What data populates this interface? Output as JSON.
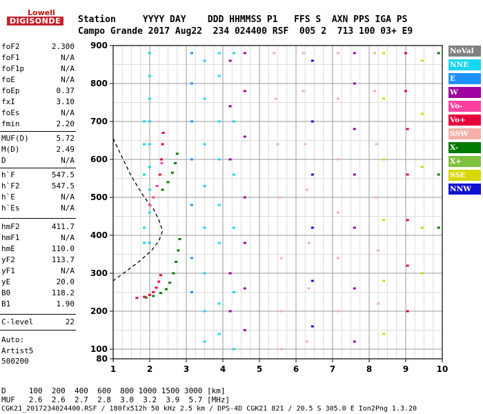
{
  "logo": {
    "brand": "Lowell",
    "name": "DIGISONDE"
  },
  "header": {
    "row1": "Station     YYYY DAY    DDD HHMMSS P1   FFS S  AXN PPS IGA PS",
    "row2": "Campo Grande 2017 Aug22  234 024400 RSF  005 2  713 100 03+ E9"
  },
  "params": [
    {
      "label": "foF2",
      "value": "2.300"
    },
    {
      "label": "foF1",
      "value": "N/A"
    },
    {
      "label": "foF1p",
      "value": "N/A"
    },
    {
      "label": "foE",
      "value": "N/A"
    },
    {
      "label": "foEp",
      "value": "0.37"
    },
    {
      "label": "fxI",
      "value": "3.10"
    },
    {
      "label": "foEs",
      "value": "N/A"
    },
    {
      "label": "fmin",
      "value": "2.20"
    },
    {
      "label": "MUF(D)",
      "value": "5.72"
    },
    {
      "label": "M(D)",
      "value": "2.49"
    },
    {
      "label": "D",
      "value": "N/A"
    },
    {
      "label": "h`F",
      "value": "547.5"
    },
    {
      "label": "h`F2",
      "value": "547.5"
    },
    {
      "label": "h`E",
      "value": "N/A"
    },
    {
      "label": "h`Es",
      "value": "N/A"
    },
    {
      "label": "hmF2",
      "value": "411.7"
    },
    {
      "label": "hmF1",
      "value": "N/A"
    },
    {
      "label": "hmE",
      "value": "110.0"
    },
    {
      "label": "yF2",
      "value": "113.7"
    },
    {
      "label": "yF1",
      "value": "N/A"
    },
    {
      "label": "yE",
      "value": "20.0"
    },
    {
      "label": "B0",
      "value": "118.2"
    },
    {
      "label": "B1",
      "value": "1.90"
    },
    {
      "label": "C-level",
      "value": "22"
    }
  ],
  "auto": {
    "line1": "Auto:",
    "line2": "Artist5",
    "line3": "500200"
  },
  "legend": [
    {
      "label": "NoVal",
      "color": "#808080"
    },
    {
      "label": "NNE",
      "color": "#17d7f0"
    },
    {
      "label": "E",
      "color": "#1e90ff"
    },
    {
      "label": "W",
      "color": "#a0009f"
    },
    {
      "label": "Vo-",
      "color": "#ff40a0"
    },
    {
      "label": "Vo+",
      "color": "#e8003a"
    },
    {
      "label": "SSW",
      "color": "#f4b0a8"
    },
    {
      "label": "X-",
      "color": "#007a00"
    },
    {
      "label": "X+",
      "color": "#80c040"
    },
    {
      "label": "SSE",
      "color": "#d8d800"
    },
    {
      "label": "NNW",
      "color": "#1010d0"
    }
  ],
  "footer": {
    "d_row": "D     100  200  400  600  800 1000 1500 3000 [km]",
    "muf_row": "MUF   2.6  2.6  2.7  2.8  3.0  3.2  3.9  5.7 [MHz]",
    "file_row": "CGK21_2017234024400.RSF / 180fx512h 50 kHz 2.5 km / DPS-4D CGK21 821 / 20.5 S 305.0 E Ion2Png 1.3.20"
  },
  "chart_data": {
    "type": "scatter",
    "xlim": [
      1,
      10
    ],
    "ylim": [
      80,
      900
    ],
    "x_ticks": [
      "1",
      "2",
      "3",
      "4",
      "5",
      "6",
      "7",
      "8",
      "9",
      "10"
    ],
    "y_ticks": [
      "80",
      "100",
      "200",
      "300",
      "400",
      "500",
      "600",
      "700",
      "800",
      "900"
    ],
    "grid": true,
    "profile_dashed": [
      [
        1.0,
        655
      ],
      [
        1.5,
        555
      ],
      [
        1.85,
        500
      ],
      [
        2.1,
        470
      ],
      [
        2.25,
        440
      ],
      [
        2.35,
        412
      ],
      [
        2.25,
        385
      ],
      [
        2.05,
        360
      ],
      [
        1.7,
        330
      ],
      [
        1.35,
        305
      ],
      [
        1.0,
        280
      ]
    ],
    "traces": [
      {
        "mode": "X-",
        "points": [
          [
            1.9,
            236
          ],
          [
            2.1,
            240
          ],
          [
            2.3,
            248
          ],
          [
            2.45,
            258
          ],
          [
            2.55,
            275
          ],
          [
            2.65,
            300
          ],
          [
            2.72,
            330
          ],
          [
            2.78,
            360
          ],
          [
            2.82,
            390
          ]
        ]
      },
      {
        "mode": "Vo+",
        "points": [
          [
            1.65,
            235
          ],
          [
            1.85,
            238
          ],
          [
            2.0,
            243
          ],
          [
            2.1,
            250
          ],
          [
            2.18,
            262
          ],
          [
            2.25,
            278
          ],
          [
            2.3,
            295
          ]
        ]
      },
      {
        "mode": "Vo-",
        "points": [
          [
            2.0,
            480
          ],
          [
            2.1,
            500
          ],
          [
            2.2,
            530
          ],
          [
            2.28,
            560
          ],
          [
            2.33,
            590
          ]
        ]
      },
      {
        "mode": "Vo+",
        "points": [
          [
            2.28,
            560
          ],
          [
            2.32,
            600
          ],
          [
            2.35,
            640
          ],
          [
            2.37,
            670
          ]
        ]
      },
      {
        "mode": "X-",
        "points": [
          [
            2.35,
            520
          ],
          [
            2.5,
            540
          ],
          [
            2.62,
            565
          ],
          [
            2.7,
            590
          ],
          [
            2.75,
            615
          ]
        ]
      },
      {
        "mode": "NNE",
        "points": [
          [
            2.0,
            880
          ],
          [
            2.0,
            820
          ],
          [
            2.0,
            760
          ],
          [
            2.0,
            700
          ],
          [
            2.0,
            640
          ],
          [
            2.0,
            580
          ],
          [
            2.0,
            520
          ],
          [
            2.0,
            460
          ],
          [
            2.0,
            380
          ]
        ]
      },
      {
        "mode": "NNE",
        "points": [
          [
            1.85,
            700
          ],
          [
            1.85,
            640
          ],
          [
            1.85,
            560
          ],
          [
            1.85,
            420
          ],
          [
            1.85,
            380
          ]
        ]
      },
      {
        "mode": "E",
        "points": [
          [
            3.15,
            880
          ],
          [
            3.15,
            800
          ],
          [
            3.15,
            700
          ],
          [
            3.15,
            600
          ],
          [
            3.15,
            480
          ],
          [
            3.15,
            340
          ],
          [
            3.15,
            250
          ]
        ]
      },
      {
        "mode": "NNE",
        "points": [
          [
            3.5,
            860
          ],
          [
            3.5,
            760
          ],
          [
            3.5,
            640
          ],
          [
            3.5,
            530
          ],
          [
            3.5,
            420
          ],
          [
            3.5,
            300
          ],
          [
            3.5,
            200
          ],
          [
            3.5,
            120
          ]
        ]
      },
      {
        "mode": "NNE",
        "points": [
          [
            3.9,
            880
          ],
          [
            3.9,
            820
          ],
          [
            3.9,
            700
          ],
          [
            3.9,
            600
          ],
          [
            3.9,
            480
          ],
          [
            3.9,
            380
          ],
          [
            3.9,
            220
          ],
          [
            3.9,
            140
          ]
        ]
      },
      {
        "mode": "NNE",
        "points": [
          [
            4.3,
            880
          ],
          [
            4.3,
            700
          ],
          [
            4.3,
            560
          ],
          [
            4.3,
            420
          ],
          [
            4.3,
            250
          ],
          [
            4.3,
            100
          ]
        ]
      },
      {
        "mode": "W",
        "points": [
          [
            4.2,
            860
          ],
          [
            4.2,
            740
          ],
          [
            4.2,
            600
          ],
          [
            4.2,
            300
          ],
          [
            4.2,
            200
          ]
        ]
      },
      {
        "mode": "W",
        "points": [
          [
            4.6,
            880
          ],
          [
            4.6,
            780
          ],
          [
            4.6,
            660
          ],
          [
            4.6,
            500
          ],
          [
            4.6,
            380
          ],
          [
            4.6,
            260
          ],
          [
            4.6,
            150
          ]
        ]
      },
      {
        "mode": "SSW",
        "points": [
          [
            5.4,
            880
          ],
          [
            5.45,
            760
          ],
          [
            5.5,
            640
          ],
          [
            5.55,
            500
          ],
          [
            5.6,
            340
          ],
          [
            5.6,
            200
          ],
          [
            5.6,
            100
          ]
        ]
      },
      {
        "mode": "SSW",
        "points": [
          [
            6.2,
            880
          ],
          [
            6.2,
            780
          ],
          [
            6.25,
            640
          ],
          [
            6.3,
            520
          ],
          [
            6.35,
            380
          ],
          [
            6.35,
            260
          ],
          [
            6.3,
            120
          ]
        ]
      },
      {
        "mode": "NNW",
        "points": [
          [
            6.45,
            860
          ],
          [
            6.45,
            700
          ],
          [
            6.45,
            560
          ],
          [
            6.45,
            420
          ],
          [
            6.45,
            280
          ],
          [
            6.45,
            160
          ]
        ]
      },
      {
        "mode": "SSW",
        "points": [
          [
            7.15,
            880
          ],
          [
            7.15,
            760
          ],
          [
            7.15,
            600
          ],
          [
            7.15,
            460
          ],
          [
            7.15,
            340
          ],
          [
            7.15,
            200
          ]
        ]
      },
      {
        "mode": "W",
        "points": [
          [
            7.6,
            880
          ],
          [
            7.6,
            800
          ],
          [
            7.6,
            680
          ],
          [
            7.6,
            560
          ],
          [
            7.6,
            420
          ],
          [
            7.6,
            260
          ],
          [
            7.6,
            120
          ]
        ]
      },
      {
        "mode": "SSW",
        "points": [
          [
            8.15,
            880
          ],
          [
            8.15,
            780
          ],
          [
            8.2,
            640
          ],
          [
            8.2,
            500
          ],
          [
            8.25,
            360
          ],
          [
            8.25,
            220
          ]
        ]
      },
      {
        "mode": "SSE",
        "points": [
          [
            8.4,
            880
          ],
          [
            8.4,
            760
          ],
          [
            8.4,
            600
          ],
          [
            8.4,
            440
          ],
          [
            8.4,
            280
          ],
          [
            8.4,
            140
          ]
        ]
      },
      {
        "mode": "Vo+",
        "points": [
          [
            9.0,
            880
          ],
          [
            9.0,
            780
          ],
          [
            9.05,
            680
          ],
          [
            9.05,
            560
          ],
          [
            9.05,
            440
          ],
          [
            9.05,
            320
          ],
          [
            9.05,
            200
          ]
        ]
      },
      {
        "mode": "SSE",
        "points": [
          [
            9.45,
            860
          ],
          [
            9.45,
            720
          ],
          [
            9.45,
            580
          ],
          [
            9.45,
            420
          ],
          [
            9.45,
            300
          ]
        ]
      },
      {
        "mode": "X-",
        "points": [
          [
            9.9,
            880
          ],
          [
            9.9,
            560
          ],
          [
            9.9,
            420
          ]
        ]
      }
    ]
  }
}
